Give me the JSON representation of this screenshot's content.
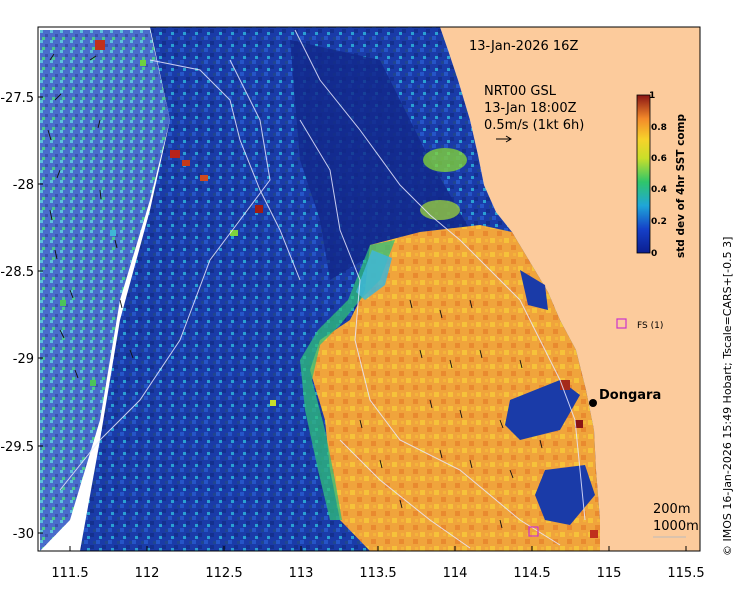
{
  "map": {
    "timestamp": "13-Jan-2026 16Z",
    "current_source": "NRT00 GSL",
    "current_time": "13-Jan 18:00Z",
    "arrow_scale": "0.5m/s (1kt 6h)",
    "colorbar_label": "std dev of 4hr SST comp",
    "colorbar_ticks": [
      "0",
      "0.2",
      "0.4",
      "0.6",
      "0.8",
      "1"
    ],
    "colorbar_range": [
      0,
      1
    ],
    "x_ticks": [
      "111.5",
      "112",
      "112.5",
      "113",
      "113.5",
      "114",
      "114.5",
      "115",
      "115.5"
    ],
    "y_ticks": [
      "-27.5",
      "-28",
      "-28.5",
      "-29",
      "-29.5",
      "-30"
    ],
    "place_label": "Dongara",
    "station_label": "FS (1)",
    "contour_labels": [
      "200m",
      "1000m"
    ],
    "credit": "© IMOS 16-Jan-2026 15:49 Hobart; Tscale=CARS+[-0.5 3]",
    "colors": {
      "land": "#fccb9c",
      "ocean_low": "#1b3aa6",
      "ocean_deep": "#12288a",
      "warm": "#f2a23a",
      "station": "#cc33cc"
    }
  }
}
